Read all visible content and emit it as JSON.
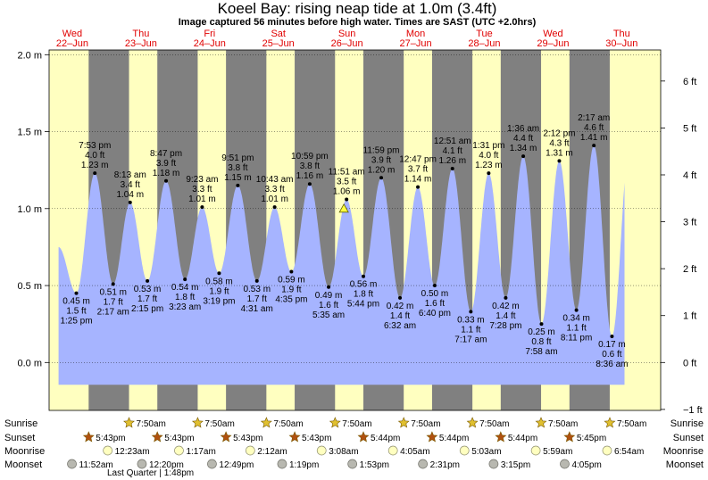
{
  "chart_data": {
    "type": "area",
    "title": "Koeel Bay: rising  neap tide at 1.0m (3.4ft)",
    "subtitle": "Image captured 56 minutes before high water. Times are SAST (UTC +2.0hrs)",
    "ylim_m": [
      -0.18,
      2.02
    ],
    "yticks_m": [
      "2.0 m",
      "1.5 m",
      "1.0 m",
      "0.5 m",
      "0.0 m"
    ],
    "yticks_m_values": [
      2.0,
      1.5,
      1.0,
      0.5,
      0.0
    ],
    "yticks_ft": [
      "6 ft",
      "5 ft",
      "4 ft",
      "3 ft",
      "2 ft",
      "1 ft",
      "0 ft",
      "−1 ft"
    ],
    "yticks_ft_values": [
      6,
      5,
      4,
      3,
      2,
      1,
      0,
      -1
    ],
    "xlim_hours": [
      0,
      216
    ],
    "days": [
      {
        "day": "Wed",
        "date": "22–Jun"
      },
      {
        "day": "Thu",
        "date": "23–Jun"
      },
      {
        "day": "Fri",
        "date": "24–Jun"
      },
      {
        "day": "Sat",
        "date": "25–Jun"
      },
      {
        "day": "Sun",
        "date": "26–Jun"
      },
      {
        "day": "Mon",
        "date": "27–Jun"
      },
      {
        "day": "Tue",
        "date": "28–Jun"
      },
      {
        "day": "Wed",
        "date": "29–Jun"
      },
      {
        "day": "Thu",
        "date": "30–Jun"
      }
    ],
    "tides": [
      {
        "hours": 13.42,
        "m": 0.45,
        "m_label": "0.45 m",
        "ft": "1.5 ft",
        "time": "1:25 pm",
        "type": "low"
      },
      {
        "hours": 19.88,
        "m": 1.23,
        "m_label": "1.23 m",
        "ft": "4.0 ft",
        "time": "7:53 pm",
        "type": "high"
      },
      {
        "hours": 26.28,
        "m": 0.51,
        "m_label": "0.51 m",
        "ft": "1.7 ft",
        "time": "2:17 am",
        "type": "low"
      },
      {
        "hours": 32.22,
        "m": 1.04,
        "m_label": "1.04 m",
        "ft": "3.4 ft",
        "time": "8:13 am",
        "type": "high"
      },
      {
        "hours": 38.25,
        "m": 0.53,
        "m_label": "0.53 m",
        "ft": "1.7 ft",
        "time": "2:15 pm",
        "type": "low"
      },
      {
        "hours": 44.78,
        "m": 1.18,
        "m_label": "1.18 m",
        "ft": "3.9 ft",
        "time": "8:47 pm",
        "type": "high"
      },
      {
        "hours": 51.38,
        "m": 0.54,
        "m_label": "0.54 m",
        "ft": "1.8 ft",
        "time": "3:23 am",
        "type": "low"
      },
      {
        "hours": 57.38,
        "m": 1.01,
        "m_label": "1.01 m",
        "ft": "3.3 ft",
        "time": "9:23 am",
        "type": "high"
      },
      {
        "hours": 63.32,
        "m": 0.58,
        "m_label": "0.58 m",
        "ft": "1.9 ft",
        "time": "3:19 pm",
        "type": "low"
      },
      {
        "hours": 69.85,
        "m": 1.15,
        "m_label": "1.15 m",
        "ft": "3.8 ft",
        "time": "9:51 pm",
        "type": "high"
      },
      {
        "hours": 76.52,
        "m": 0.53,
        "m_label": "0.53 m",
        "ft": "1.7 ft",
        "time": "4:31 am",
        "type": "low"
      },
      {
        "hours": 82.72,
        "m": 1.01,
        "m_label": "1.01 m",
        "ft": "3.3 ft",
        "time": "10:43 am",
        "type": "high"
      },
      {
        "hours": 88.58,
        "m": 0.59,
        "m_label": "0.59 m",
        "ft": "1.9 ft",
        "time": "4:35 pm",
        "type": "low"
      },
      {
        "hours": 94.98,
        "m": 1.16,
        "m_label": "1.16 m",
        "ft": "3.8 ft",
        "time": "10:59 pm",
        "type": "high"
      },
      {
        "hours": 101.58,
        "m": 0.49,
        "m_label": "0.49 m",
        "ft": "1.6 ft",
        "time": "5:35 am",
        "type": "low"
      },
      {
        "hours": 107.85,
        "m": 1.06,
        "m_label": "1.06 m",
        "ft": "3.5 ft",
        "time": "11:51 am",
        "type": "high"
      },
      {
        "hours": 113.73,
        "m": 0.56,
        "m_label": "0.56 m",
        "ft": "1.8 ft",
        "time": "5:44 pm",
        "type": "low"
      },
      {
        "hours": 119.98,
        "m": 1.2,
        "m_label": "1.20 m",
        "ft": "3.9 ft",
        "time": "11:59 pm",
        "type": "high"
      },
      {
        "hours": 126.53,
        "m": 0.42,
        "m_label": "0.42 m",
        "ft": "1.4 ft",
        "time": "6:32 am",
        "type": "low"
      },
      {
        "hours": 132.78,
        "m": 1.14,
        "m_label": "1.14 m",
        "ft": "3.7 ft",
        "time": "12:47 pm",
        "type": "high"
      },
      {
        "hours": 138.67,
        "m": 0.5,
        "m_label": "0.50 m",
        "ft": "1.6 ft",
        "time": "6:40 pm",
        "type": "low"
      },
      {
        "hours": 144.85,
        "m": 1.26,
        "m_label": "1.26 m",
        "ft": "4.1 ft",
        "time": "12:51 am",
        "type": "high"
      },
      {
        "hours": 151.28,
        "m": 0.33,
        "m_label": "0.33 m",
        "ft": "1.1 ft",
        "time": "7:17 am",
        "type": "low"
      },
      {
        "hours": 157.52,
        "m": 1.23,
        "m_label": "1.23 m",
        "ft": "4.0 ft",
        "time": "1:31 pm",
        "type": "high"
      },
      {
        "hours": 163.47,
        "m": 0.42,
        "m_label": "0.42 m",
        "ft": "1.4 ft",
        "time": "7:28 pm",
        "type": "low"
      },
      {
        "hours": 169.6,
        "m": 1.34,
        "m_label": "1.34 m",
        "ft": "4.4 ft",
        "time": "1:36 am",
        "type": "high"
      },
      {
        "hours": 175.97,
        "m": 0.25,
        "m_label": "0.25 m",
        "ft": "0.8 ft",
        "time": "7:58 am",
        "type": "low"
      },
      {
        "hours": 182.2,
        "m": 1.31,
        "m_label": "1.31 m",
        "ft": "4.3 ft",
        "time": "2:12 pm",
        "type": "high"
      },
      {
        "hours": 188.18,
        "m": 0.34,
        "m_label": "0.34 m",
        "ft": "1.1 ft",
        "time": "8:11 pm",
        "type": "low"
      },
      {
        "hours": 194.28,
        "m": 1.41,
        "m_label": "1.41 m",
        "ft": "4.6 ft",
        "time": "2:17 am",
        "type": "high"
      },
      {
        "hours": 200.6,
        "m": 0.17,
        "m_label": "0.17 m",
        "ft": "0.6 ft",
        "time": "8:36 am",
        "type": "low"
      }
    ],
    "current": {
      "hours": 106.92,
      "m": 1.0
    },
    "sun": {
      "sunrise_hours": [
        31.83,
        55.83,
        79.83,
        103.83,
        127.83,
        151.83,
        175.83,
        199.83
      ],
      "sunset_hours": [
        17.72,
        41.72,
        65.72,
        89.72,
        113.73,
        137.73,
        161.73,
        185.75
      ]
    },
    "rows": {
      "sunrise": {
        "label": "Sunrise",
        "events": [
          {
            "hours": 31.83,
            "text": "7:50am"
          },
          {
            "hours": 55.83,
            "text": "7:50am"
          },
          {
            "hours": 79.83,
            "text": "7:50am"
          },
          {
            "hours": 103.83,
            "text": "7:50am"
          },
          {
            "hours": 127.83,
            "text": "7:50am"
          },
          {
            "hours": 151.83,
            "text": "7:50am"
          },
          {
            "hours": 175.83,
            "text": "7:50am"
          },
          {
            "hours": 199.83,
            "text": "7:50am"
          }
        ]
      },
      "sunset": {
        "label": "Sunset",
        "events": [
          {
            "hours": 17.72,
            "text": "5:43pm"
          },
          {
            "hours": 41.72,
            "text": "5:43pm"
          },
          {
            "hours": 65.72,
            "text": "5:43pm"
          },
          {
            "hours": 89.72,
            "text": "5:43pm"
          },
          {
            "hours": 113.73,
            "text": "5:44pm"
          },
          {
            "hours": 137.73,
            "text": "5:44pm"
          },
          {
            "hours": 161.73,
            "text": "5:44pm"
          },
          {
            "hours": 185.75,
            "text": "5:45pm"
          }
        ]
      },
      "moonrise": {
        "label": "Moonrise",
        "events": [
          {
            "hours": 24.38,
            "text": "12:23am"
          },
          {
            "hours": 49.28,
            "text": "1:17am"
          },
          {
            "hours": 74.2,
            "text": "2:12am"
          },
          {
            "hours": 99.13,
            "text": "3:08am"
          },
          {
            "hours": 124.08,
            "text": "4:05am"
          },
          {
            "hours": 149.05,
            "text": "5:03am"
          },
          {
            "hours": 173.98,
            "text": "5:59am"
          },
          {
            "hours": 198.9,
            "text": "6:54am"
          }
        ]
      },
      "moonset": {
        "label": "Moonset",
        "events": [
          {
            "hours": 11.87,
            "text": "11:52am"
          },
          {
            "hours": 36.33,
            "text": "12:20pm"
          },
          {
            "hours": 60.82,
            "text": "12:49pm"
          },
          {
            "hours": 85.32,
            "text": "1:19pm"
          },
          {
            "hours": 109.88,
            "text": "1:53pm"
          },
          {
            "hours": 134.52,
            "text": "2:31pm"
          },
          {
            "hours": 159.25,
            "text": "3:15pm"
          },
          {
            "hours": 184.08,
            "text": "4:05pm"
          }
        ]
      }
    },
    "moon_phase": {
      "text": "Last Quarter | 1:48pm"
    },
    "colors": {
      "day_bg": "#ffffc0",
      "night_bg": "#808080",
      "water": "#a6b4ff",
      "day_label": "#e00000",
      "sun_star": "#e0c030",
      "sunset_star": "#b05010",
      "moonrise_disc": "#ffffc0",
      "moonset_disc": "#b8b8b0"
    }
  }
}
